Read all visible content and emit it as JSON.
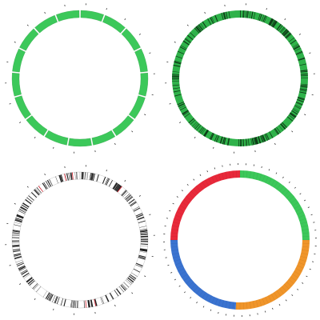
{
  "panels": [
    {
      "id": "top-left",
      "style": "green-segments",
      "fill": "#3cc85a",
      "stroke": "#2a9a42",
      "segment_count": 17,
      "label_count": 22
    },
    {
      "id": "top-right",
      "style": "green-bands",
      "fill": "#2fb24a",
      "band_color": "#0f3d18",
      "band_count": 220,
      "label_count": 22
    },
    {
      "id": "bottom-left",
      "style": "cytoband",
      "fill": "#ffffff",
      "band_color": "#222222",
      "accent_color": "#d01f2b",
      "band_count": 240,
      "accent_count": 6,
      "label_count": 22
    },
    {
      "id": "bottom-right",
      "style": "colored-quadrants",
      "colors": [
        "#3cc85a",
        "#f0952a",
        "#3a73d0",
        "#e8293a"
      ],
      "label_count": 60
    }
  ]
}
